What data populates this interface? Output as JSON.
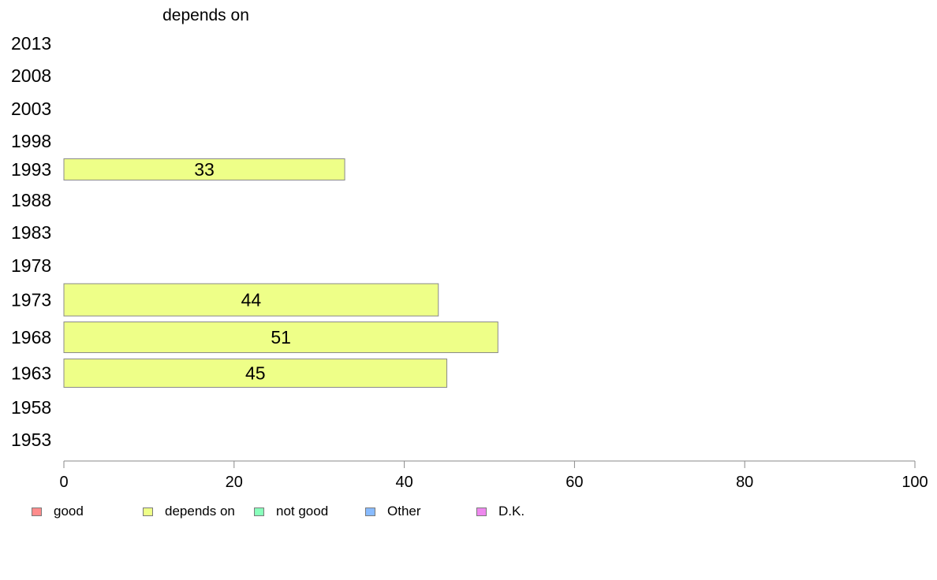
{
  "chart_data": {
    "type": "bar",
    "orientation": "horizontal",
    "title": "depends on",
    "categories": [
      "2013",
      "2008",
      "2003",
      "1998",
      "1993",
      "1988",
      "1983",
      "1978",
      "1973",
      "1968",
      "1963",
      "1958",
      "1953"
    ],
    "series": [
      {
        "name": "depends on",
        "color": "#eeff88",
        "values": [
          null,
          null,
          null,
          null,
          33,
          null,
          null,
          null,
          44,
          51,
          45,
          null,
          null
        ]
      }
    ],
    "data_labels": [
      "",
      "",
      "",
      "",
      "33",
      "",
      "",
      "",
      "44",
      "51",
      "45",
      "",
      ""
    ],
    "xlim": [
      0,
      100
    ],
    "xticks": [
      "0",
      "20",
      "40",
      "60",
      "80",
      "100"
    ],
    "xlabel": "",
    "ylabel": "",
    "grid": false,
    "legend_position": "bottom",
    "legend": [
      {
        "label": "good",
        "color": "#ff8c8c"
      },
      {
        "label": "depends on",
        "color": "#eeff88"
      },
      {
        "label": "not good",
        "color": "#88ffbb"
      },
      {
        "label": "Other",
        "color": "#88bbff"
      },
      {
        "label": "D.K.",
        "color": "#ee88ee"
      }
    ]
  }
}
